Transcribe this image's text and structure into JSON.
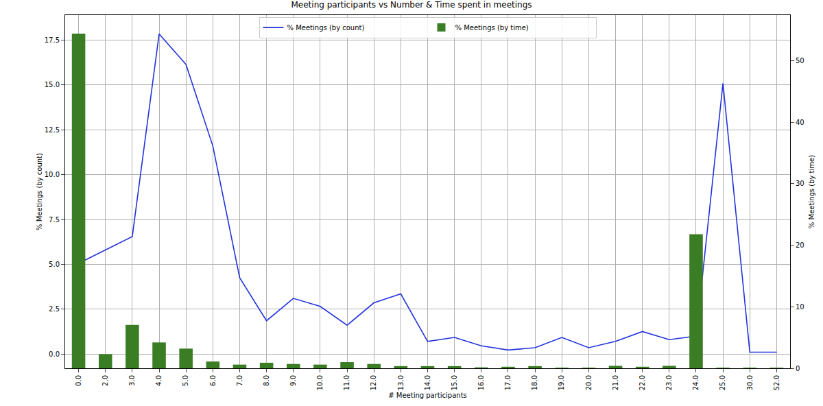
{
  "chart_data": {
    "type": "line",
    "title": "Meeting participants vs Number & Time spent in meetings",
    "x_label": "# Meeting participants",
    "y_label": "% Meetings (by count)",
    "y2_label": "% Meetings (by time)",
    "categories": [
      "0.0",
      "2.0",
      "3.0",
      "4.0",
      "5.0",
      "6.0",
      "7.0",
      "8.0",
      "9.0",
      "10.0",
      "11.0",
      "12.0",
      "13.0",
      "14.0",
      "15.0",
      "16.0",
      "17.0",
      "18.0",
      "19.0",
      "20.0",
      "21.0",
      "22.0",
      "23.0",
      "24.0",
      "25.0",
      "30.0",
      "52.0"
    ],
    "series": [
      {
        "name": "% Meetings (by count)",
        "type": "line",
        "color": "#2233dd",
        "values": [
          5.05,
          5.8,
          6.55,
          17.85,
          16.15,
          11.6,
          4.25,
          1.85,
          3.1,
          2.65,
          1.6,
          2.85,
          3.35,
          0.7,
          0.92,
          0.45,
          0.22,
          0.35,
          0.92,
          0.35,
          0.7,
          1.25,
          0.8,
          1.0,
          15.1,
          0.1,
          0.1
        ]
      },
      {
        "name": "% Meetings (by time)",
        "type": "bar",
        "color": "#3a7d25",
        "axis": "y2",
        "values": [
          54.4,
          2.3,
          7.05,
          4.2,
          3.2,
          1.1,
          0.6,
          0.9,
          0.7,
          0.6,
          1.0,
          0.7,
          0.35,
          0.35,
          0.35,
          0.15,
          0.25,
          0.35,
          0.1,
          0.1,
          0.4,
          0.25,
          0.4,
          21.8,
          0.1,
          0.1,
          0.1
        ]
      }
    ],
    "ylim": [
      -0.8,
      18.9
    ],
    "yticks": [
      {
        "value": 0,
        "label": "0.0"
      },
      2.5,
      {
        "value": 5,
        "label": "5.0"
      },
      7.5,
      {
        "value": 10,
        "label": "10.0"
      },
      12.5,
      {
        "value": 15,
        "label": "15.0"
      },
      17.5
    ],
    "y2lim": [
      0,
      57.4
    ],
    "y2ticks": [
      0,
      10,
      20,
      30,
      40,
      50
    ],
    "grid": true,
    "legend": "top"
  }
}
